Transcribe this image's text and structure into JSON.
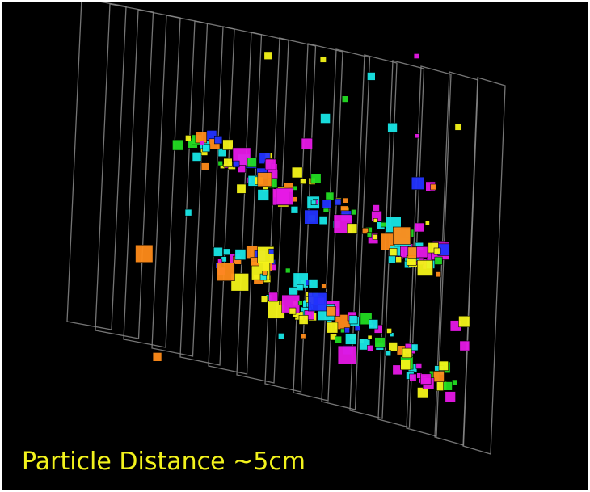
{
  "caption": "Particle Distance ~5cm"
}
